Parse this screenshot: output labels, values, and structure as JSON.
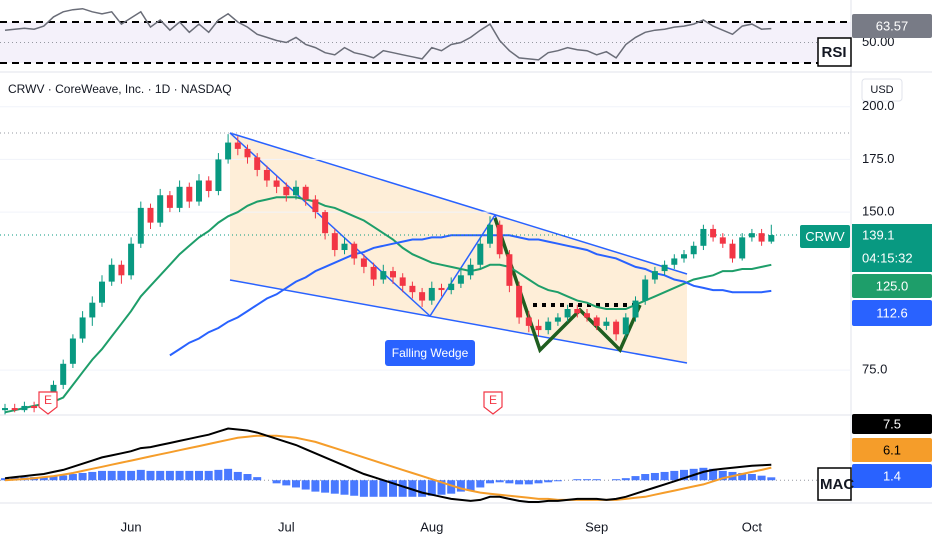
{
  "header": {
    "title": "CRWV · CoreWeave, Inc. · 1D · NASDAQ",
    "currency": "USD"
  },
  "chart_data": [
    {
      "type": "candlestick",
      "symbol": "CRWV",
      "countdown": "04:15:32",
      "up_color": "#089981",
      "down_color": "#f23645",
      "categories": [
        null,
        null,
        null,
        null,
        null,
        null,
        null,
        null,
        null,
        null,
        null,
        null,
        null,
        "Jun",
        null,
        null,
        null,
        null,
        null,
        null,
        null,
        null,
        null,
        null,
        null,
        null,
        null,
        null,
        null,
        "Jul",
        null,
        null,
        null,
        null,
        null,
        null,
        null,
        null,
        null,
        null,
        null,
        null,
        null,
        null,
        "Aug",
        null,
        null,
        null,
        null,
        null,
        null,
        null,
        null,
        null,
        null,
        null,
        null,
        null,
        null,
        null,
        null,
        "Sep",
        null,
        null,
        null,
        null,
        null,
        null,
        null,
        null,
        null,
        null,
        null,
        null,
        null,
        null,
        null,
        "Oct",
        null,
        null
      ],
      "candles": [
        [
          56,
          59,
          54,
          57
        ],
        [
          57,
          59,
          55,
          56
        ],
        [
          56,
          60,
          55,
          58
        ],
        [
          58,
          60,
          55,
          57
        ],
        [
          57,
          62,
          56,
          60
        ],
        [
          60,
          70,
          59,
          68
        ],
        [
          68,
          80,
          66,
          78
        ],
        [
          78,
          92,
          76,
          90
        ],
        [
          90,
          103,
          88,
          100
        ],
        [
          100,
          110,
          96,
          107
        ],
        [
          107,
          120,
          105,
          117
        ],
        [
          117,
          128,
          115,
          125
        ],
        [
          125,
          127,
          116,
          120
        ],
        [
          120,
          138,
          118,
          135
        ],
        [
          135,
          155,
          133,
          152
        ],
        [
          152,
          154,
          142,
          145
        ],
        [
          145,
          161,
          143,
          158
        ],
        [
          158,
          160,
          150,
          152
        ],
        [
          152,
          165,
          150,
          162
        ],
        [
          162,
          164,
          152,
          155
        ],
        [
          155,
          168,
          153,
          165
        ],
        [
          165,
          167,
          157,
          160
        ],
        [
          160,
          178,
          158,
          175
        ],
        [
          175,
          187,
          173,
          183
        ],
        [
          183,
          186,
          177,
          180
        ],
        [
          180,
          182,
          173,
          176
        ],
        [
          176,
          178,
          167,
          170
        ],
        [
          170,
          172,
          162,
          165
        ],
        [
          165,
          167,
          159,
          162
        ],
        [
          162,
          164,
          155,
          158
        ],
        [
          158,
          165,
          156,
          162
        ],
        [
          162,
          163,
          153,
          156
        ],
        [
          156,
          158,
          147,
          150
        ],
        [
          150,
          151,
          137,
          140
        ],
        [
          140,
          142,
          129,
          132
        ],
        [
          132,
          138,
          130,
          135
        ],
        [
          135,
          136,
          125,
          128
        ],
        [
          128,
          130,
          121,
          124
        ],
        [
          124,
          126,
          115,
          118
        ],
        [
          118,
          125,
          116,
          122
        ],
        [
          122,
          124,
          116,
          119
        ],
        [
          119,
          121,
          112,
          115
        ],
        [
          115,
          117,
          109,
          112
        ],
        [
          112,
          114,
          105,
          108
        ],
        [
          108,
          117,
          106,
          114
        ],
        [
          114,
          116,
          110,
          113
        ],
        [
          113,
          119,
          111,
          116
        ],
        [
          116,
          123,
          114,
          120
        ],
        [
          120,
          128,
          118,
          125
        ],
        [
          125,
          138,
          123,
          135
        ],
        [
          135,
          148,
          133,
          144
        ],
        [
          144,
          146,
          128,
          130
        ],
        [
          130,
          132,
          112,
          115
        ],
        [
          115,
          117,
          97,
          100
        ],
        [
          100,
          103,
          93,
          96
        ],
        [
          96,
          99,
          91,
          94
        ],
        [
          94,
          100,
          92,
          98
        ],
        [
          98,
          102,
          96,
          100
        ],
        [
          100,
          106,
          98,
          104
        ],
        [
          104,
          106,
          100,
          102
        ],
        [
          102,
          104,
          98,
          100
        ],
        [
          100,
          101,
          94,
          96
        ],
        [
          96,
          100,
          94,
          98
        ],
        [
          98,
          99,
          89,
          92
        ],
        [
          92,
          102,
          90,
          100
        ],
        [
          100,
          110,
          98,
          108
        ],
        [
          108,
          120,
          106,
          118
        ],
        [
          118,
          124,
          116,
          122
        ],
        [
          122,
          127,
          120,
          125
        ],
        [
          125,
          130,
          123,
          128
        ],
        [
          128,
          132,
          126,
          130
        ],
        [
          130,
          136,
          128,
          134
        ],
        [
          134,
          144,
          132,
          142
        ],
        [
          142,
          144,
          136,
          138
        ],
        [
          138,
          140,
          133,
          135
        ],
        [
          135,
          137,
          126,
          128
        ],
        [
          128,
          140,
          127,
          138
        ],
        [
          138,
          142,
          136,
          140
        ],
        [
          140,
          142,
          134,
          136
        ],
        [
          136,
          144,
          135,
          139.1
        ]
      ],
      "series": [
        {
          "color": "#1e9e6a",
          "values": [
            55,
            56,
            57,
            58,
            59,
            60,
            62,
            68,
            74,
            80,
            85,
            91,
            97,
            103,
            110,
            115,
            120,
            125,
            130,
            134,
            138,
            141,
            145,
            148,
            150,
            153,
            155,
            156,
            157,
            157,
            157,
            156,
            155,
            153,
            152,
            150,
            148,
            146,
            143,
            140,
            137,
            133,
            130,
            128,
            126,
            125,
            124,
            123,
            122,
            123,
            125,
            125,
            124,
            121,
            118,
            115,
            113,
            112,
            110,
            108,
            107,
            105,
            104,
            104,
            104,
            106,
            108,
            110,
            112,
            114,
            116,
            118,
            119,
            120,
            122,
            122,
            123,
            123,
            124,
            125
          ],
          "value_labels": [
            null,
            null,
            null,
            null,
            null,
            null,
            null,
            null,
            null,
            null,
            null,
            null,
            null,
            null,
            null,
            null,
            null,
            null,
            null,
            null,
            null,
            null,
            null,
            null,
            null,
            null,
            null,
            null,
            null,
            null,
            null,
            null,
            null,
            null,
            null,
            null,
            null,
            null,
            null,
            null,
            null,
            null,
            null,
            null,
            null,
            null,
            null,
            null,
            null,
            null,
            null,
            null,
            null,
            null,
            null,
            null,
            null,
            null,
            null,
            null,
            null,
            null,
            null,
            null,
            null,
            null,
            null,
            null,
            null,
            null,
            null,
            null,
            null,
            null,
            null,
            null,
            null,
            null,
            null,
            "125.0"
          ]
        },
        {
          "color": "#2962ff",
          "values": [
            null,
            null,
            null,
            null,
            null,
            null,
            null,
            null,
            null,
            null,
            null,
            null,
            null,
            null,
            null,
            null,
            null,
            82,
            85,
            88,
            90,
            93,
            95,
            98,
            100,
            103,
            106,
            109,
            111,
            114,
            117,
            119,
            122,
            124,
            126,
            128,
            130,
            131,
            133,
            134,
            135,
            136,
            137,
            137,
            138,
            138,
            139,
            139,
            139,
            139,
            139,
            139,
            139,
            138,
            137,
            137,
            136,
            135,
            134,
            133,
            132,
            130,
            129,
            128,
            126,
            124,
            123,
            121,
            120,
            118,
            117,
            115,
            114,
            113,
            113,
            112,
            112,
            112,
            112,
            112.6
          ]
        }
      ],
      "ylim": [
        53.7,
        203.2
      ],
      "yticks": [
        {
          "value": 75,
          "label": "75.0"
        },
        {
          "value": 150,
          "label": "150.0"
        },
        {
          "value": 175,
          "label": "175.0"
        },
        {
          "value": 200,
          "label": "200.0"
        }
      ],
      "grid": true,
      "annotations": [
        "Falling Wedge"
      ],
      "earnings": [
        "E",
        "E"
      ]
    },
    {
      "type": "line",
      "title": "RSI",
      "color": "#6a6d78",
      "band": [
        30,
        70
      ],
      "values": [
        62,
        63,
        64,
        63,
        66,
        75,
        80,
        82,
        83,
        80,
        78,
        80,
        68,
        74,
        80,
        65,
        72,
        62,
        70,
        60,
        68,
        60,
        72,
        78,
        70,
        65,
        58,
        55,
        52,
        50,
        55,
        48,
        45,
        40,
        38,
        45,
        40,
        38,
        35,
        42,
        40,
        38,
        36,
        34,
        45,
        42,
        48,
        50,
        55,
        62,
        68,
        52,
        42,
        35,
        34,
        33,
        40,
        42,
        45,
        43,
        42,
        38,
        41,
        35,
        48,
        55,
        60,
        62,
        63,
        65,
        66,
        68,
        72,
        66,
        62,
        58,
        66,
        68,
        63,
        63.57
      ],
      "ylim": [
        25.1,
        91.5
      ],
      "yticks": [
        {
          "value": 50,
          "label": "50.00"
        }
      ]
    },
    {
      "type": "macd",
      "title": "MAC",
      "ylim": [
        -11,
        31.5
      ],
      "series": [
        {
          "color": "#000000",
          "values": [
            1,
            1.5,
            2,
            2.5,
            3,
            4,
            5,
            6.5,
            8,
            9.5,
            11,
            12,
            13,
            14,
            15.5,
            16,
            17,
            18,
            19,
            20,
            21,
            22,
            23.5,
            25,
            24.5,
            24,
            23,
            21.5,
            20,
            18.5,
            17,
            15,
            13,
            11,
            9,
            7,
            5,
            3,
            1.5,
            0,
            -1.5,
            -3,
            -4.5,
            -6,
            -7,
            -8,
            -9,
            -9.5,
            -10,
            -9.5,
            -8,
            -8,
            -9,
            -10,
            -10.5,
            -10.5,
            -10,
            -10,
            -9.5,
            -9,
            -9,
            -9,
            -9.5,
            -9,
            -8,
            -6.5,
            -5,
            -3.5,
            -2,
            -0.5,
            1,
            2.5,
            4,
            5,
            5.5,
            6,
            6.5,
            7,
            7.2,
            7.5
          ]
        },
        {
          "color": "#f59d2a",
          "values": [
            0,
            0.3,
            0.6,
            1,
            1.5,
            2,
            2.7,
            3.5,
            4.5,
            5.5,
            6.5,
            7.5,
            8.5,
            9.5,
            10.5,
            11.5,
            12.5,
            13.5,
            14.5,
            15.5,
            16.5,
            17.5,
            18.5,
            19.5,
            20.5,
            21,
            21.5,
            21.5,
            21.5,
            21,
            20.5,
            19.5,
            18.5,
            17,
            15.5,
            14,
            12.5,
            11,
            9.5,
            8,
            6.5,
            5,
            3.5,
            2,
            0.5,
            -1,
            -2.5,
            -4,
            -5,
            -6,
            -6.5,
            -7,
            -7.5,
            -8,
            -8.5,
            -9,
            -9,
            -9.5,
            -9.5,
            -9.5,
            -9.5,
            -9.5,
            -9.5,
            -9.5,
            -9,
            -8.5,
            -8,
            -7,
            -6,
            -5,
            -4,
            -3,
            -2,
            -0.5,
            1,
            2,
            3,
            4,
            5,
            6.1
          ]
        },
        {
          "color": "#2962ff",
          "values": [
            1,
            1.2,
            1.4,
            1.5,
            1.5,
            2,
            2.3,
            3,
            3.5,
            4,
            4.5,
            4.5,
            4.5,
            4.5,
            5,
            4.5,
            4.5,
            4.5,
            4.5,
            4.5,
            4.5,
            4.5,
            5,
            5.5,
            4,
            3,
            1.5,
            0,
            -1.5,
            -2.5,
            -3.5,
            -4.5,
            -5.5,
            -6,
            -6.5,
            -7,
            -7.5,
            -8,
            -8,
            -8,
            -8,
            -8,
            -8,
            -8,
            -7.5,
            -7,
            -6.5,
            -5.5,
            -5,
            -3.5,
            -1.5,
            -1,
            -1.5,
            -2,
            -2,
            -1.5,
            -1,
            -0.5,
            0,
            0.5,
            0.5,
            0.5,
            0,
            0.5,
            1,
            2,
            3,
            3.5,
            4,
            4.5,
            5,
            5.5,
            6,
            5.5,
            4.5,
            4,
            3.5,
            3,
            2.2,
            1.4
          ]
        }
      ]
    }
  ]
}
